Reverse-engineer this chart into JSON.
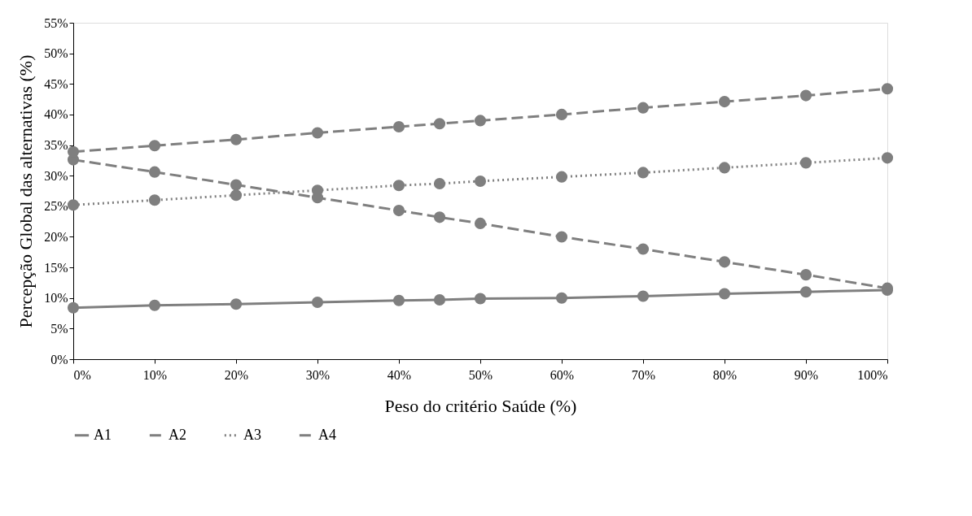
{
  "chart_data": {
    "type": "line",
    "xlabel": "Peso do critério Saúde (%)",
    "ylabel": "Percepção Global das alternativas (%)",
    "x": [
      0,
      10,
      20,
      30,
      40,
      45,
      50,
      60,
      70,
      80,
      90,
      100
    ],
    "series": [
      {
        "name": "A1",
        "color": "#7f7f7f",
        "line_style": "solid",
        "values": [
          8.4,
          8.8,
          9.0,
          9.3,
          9.6,
          9.7,
          9.9,
          10.0,
          10.3,
          10.7,
          11.0,
          11.3
        ]
      },
      {
        "name": "A2",
        "color": "#7f7f7f",
        "line_style": "dashed",
        "values": [
          32.6,
          30.6,
          28.5,
          26.4,
          24.3,
          23.2,
          22.2,
          20.0,
          18.0,
          15.9,
          13.8,
          11.6
        ]
      },
      {
        "name": "A3",
        "color": "#7f7f7f",
        "line_style": "dotted",
        "values": [
          25.2,
          26.0,
          26.8,
          27.6,
          28.4,
          28.7,
          29.1,
          29.8,
          30.5,
          31.3,
          32.1,
          32.9
        ]
      },
      {
        "name": "A4",
        "color": "#7f7f7f",
        "line_style": "dashed",
        "values": [
          33.9,
          34.9,
          35.9,
          37.0,
          38.0,
          38.5,
          39.0,
          40.0,
          41.1,
          42.1,
          43.1,
          44.2
        ]
      }
    ],
    "xlim": [
      0,
      100
    ],
    "xticks": [
      {
        "value": 0,
        "label": "0%"
      },
      {
        "value": 10,
        "label": "10%"
      },
      {
        "value": 20,
        "label": "20%"
      },
      {
        "value": 30,
        "label": "30%"
      },
      {
        "value": 40,
        "label": "40%"
      },
      {
        "value": 50,
        "label": "50%"
      },
      {
        "value": 60,
        "label": "60%"
      },
      {
        "value": 70,
        "label": "70%"
      },
      {
        "value": 80,
        "label": "80%"
      },
      {
        "value": 90,
        "label": "90%"
      },
      {
        "value": 100,
        "label": "100%"
      }
    ],
    "ylim": [
      0,
      55
    ],
    "yticks": [
      {
        "value": 0,
        "label": "0%"
      },
      {
        "value": 5,
        "label": "5%"
      },
      {
        "value": 10,
        "label": "10%"
      },
      {
        "value": 15,
        "label": "15%"
      },
      {
        "value": 20,
        "label": "20%"
      },
      {
        "value": 25,
        "label": "25%"
      },
      {
        "value": 30,
        "label": "30%"
      },
      {
        "value": 35,
        "label": "35%"
      },
      {
        "value": 40,
        "label": "40%"
      },
      {
        "value": 45,
        "label": "45%"
      },
      {
        "value": 50,
        "label": "50%"
      },
      {
        "value": 55,
        "label": "55%"
      }
    ],
    "grid": false,
    "legend": "bottom",
    "marker": "circle"
  }
}
